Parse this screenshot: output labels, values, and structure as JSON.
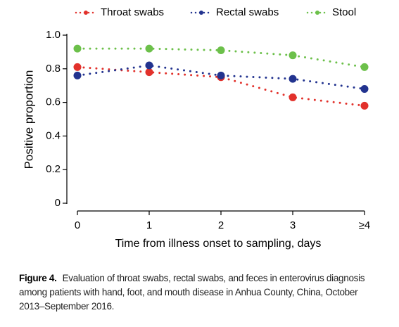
{
  "chart_data": {
    "type": "line",
    "x_label": "Time from illness onset to sampling, days",
    "y_label": "Positive proportion",
    "categories": [
      "0",
      "1",
      "2",
      "3",
      "≥4"
    ],
    "series": [
      {
        "name": "Throat swabs",
        "color": "#e2312b",
        "values": [
          0.81,
          0.78,
          0.75,
          0.63,
          0.58
        ]
      },
      {
        "name": "Rectal swabs",
        "color": "#22338f",
        "values": [
          0.76,
          0.82,
          0.76,
          0.74,
          0.68
        ]
      },
      {
        "name": "Stool",
        "color": "#6cc04a",
        "values": [
          0.92,
          0.92,
          0.91,
          0.88,
          0.81
        ]
      }
    ],
    "ylim": [
      0,
      1
    ],
    "yticks": [
      0,
      0.2,
      0.4,
      0.6,
      0.8,
      {
        "value": 1,
        "label": "1.0"
      }
    ],
    "legend": "top"
  },
  "caption": {
    "label": "Figure 4.",
    "text": "Evaluation of throat swabs, rectal swabs, and feces in enterovirus diagnosis among patients with hand, foot, and mouth disease in Anhua County, China, October 2013–September 2016."
  }
}
